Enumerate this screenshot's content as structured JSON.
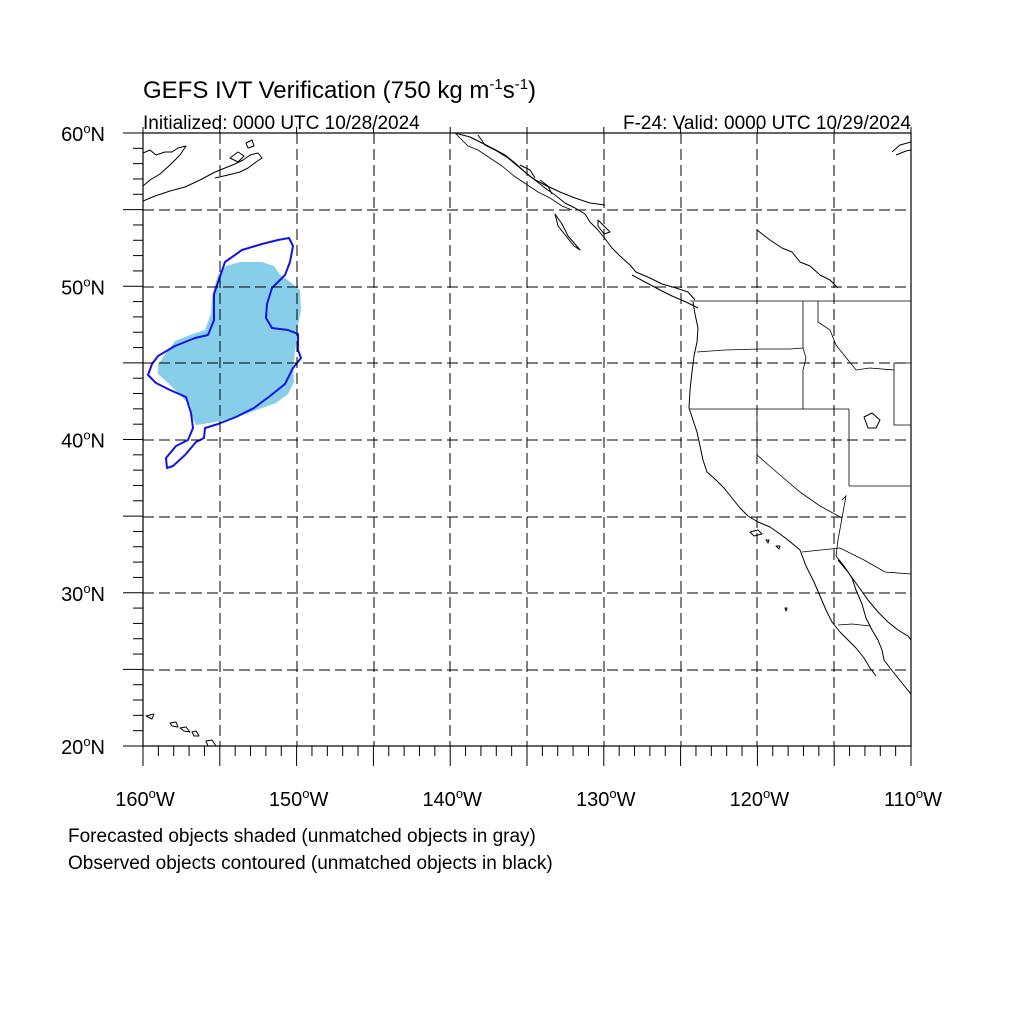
{
  "title": {
    "main": "GEFS IVT Verification (750 kg m",
    "exp1": "-1",
    "mid": "s",
    "exp2": "-1",
    "close": ")"
  },
  "subtitle_left": "Initialized: 0000 UTC 10/28/2024",
  "subtitle_right": "F-24: Valid: 0000 UTC 10/29/2024",
  "lat_labels": [
    {
      "value": 60,
      "deg": "60",
      "hemi": "N"
    },
    {
      "value": 50,
      "deg": "50",
      "hemi": "N"
    },
    {
      "value": 40,
      "deg": "40",
      "hemi": "N"
    },
    {
      "value": 30,
      "deg": "30",
      "hemi": "N"
    },
    {
      "value": 20,
      "deg": "20",
      "hemi": "N"
    }
  ],
  "lon_labels": [
    {
      "value": -160,
      "deg": "160",
      "hemi": "W"
    },
    {
      "value": -150,
      "deg": "150",
      "hemi": "W"
    },
    {
      "value": -140,
      "deg": "140",
      "hemi": "W"
    },
    {
      "value": -130,
      "deg": "130",
      "hemi": "W"
    },
    {
      "value": -120,
      "deg": "120",
      "hemi": "W"
    },
    {
      "value": -110,
      "deg": "110",
      "hemi": "W"
    }
  ],
  "map_extent": {
    "lon_min": -160,
    "lon_max": -110,
    "lat_min": 20,
    "lat_max": 60
  },
  "forecast_object_color": "#87ceeb",
  "observed_object_color": "#1414e6",
  "legend_lines": [
    "Forecasted objects shaded (unmatched objects in gray)",
    "Observed objects contoured (unmatched objects in black)"
  ]
}
